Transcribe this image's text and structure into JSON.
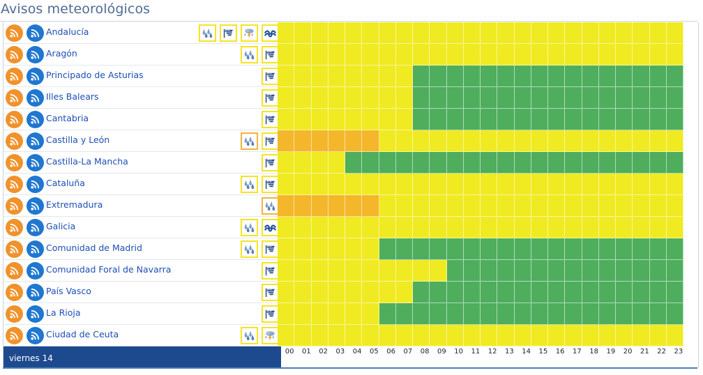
{
  "title": "Avisos meteorológicos",
  "colors": {
    "none": "#f0ea22",
    "yellow": "#f0ea22",
    "orange": "#f4b72c",
    "green": "#4fae5d",
    "day_band": "#1d4a8e"
  },
  "day_label": "viernes 14",
  "hours": [
    "00",
    "01",
    "02",
    "03",
    "04",
    "05",
    "06",
    "07",
    "08",
    "09",
    "10",
    "11",
    "12",
    "13",
    "14",
    "15",
    "16",
    "17",
    "18",
    "19",
    "20",
    "21",
    "22",
    "23"
  ],
  "regions": [
    {
      "name": "Andalucía",
      "phenomena": [
        {
          "icon": "rain-icon",
          "level": "yellow"
        },
        {
          "icon": "wind-icon",
          "level": "yellow"
        },
        {
          "icon": "storm-icon",
          "level": "yellow"
        },
        {
          "icon": "coastal-icon",
          "level": "yellow"
        }
      ],
      "hours": [
        "y",
        "y",
        "y",
        "y",
        "y",
        "y",
        "y",
        "y",
        "y",
        "y",
        "y",
        "y",
        "y",
        "y",
        "y",
        "y",
        "y",
        "y",
        "y",
        "y",
        "y",
        "y",
        "y",
        "y"
      ]
    },
    {
      "name": "Aragón",
      "phenomena": [
        {
          "icon": "rain-icon",
          "level": "yellow"
        },
        {
          "icon": "wind-icon",
          "level": "yellow"
        }
      ],
      "hours": [
        "y",
        "y",
        "y",
        "y",
        "y",
        "y",
        "y",
        "y",
        "y",
        "y",
        "y",
        "y",
        "y",
        "y",
        "y",
        "y",
        "y",
        "y",
        "y",
        "y",
        "y",
        "y",
        "y",
        "y"
      ]
    },
    {
      "name": "Principado de Asturias",
      "phenomena": [
        {
          "icon": "wind-icon",
          "level": "yellow"
        }
      ],
      "hours": [
        "y",
        "y",
        "y",
        "y",
        "y",
        "y",
        "y",
        "y",
        "g",
        "g",
        "g",
        "g",
        "g",
        "g",
        "g",
        "g",
        "g",
        "g",
        "g",
        "g",
        "g",
        "g",
        "g",
        "g"
      ]
    },
    {
      "name": "Illes Balears",
      "phenomena": [
        {
          "icon": "wind-icon",
          "level": "yellow"
        }
      ],
      "hours": [
        "y",
        "y",
        "y",
        "y",
        "y",
        "y",
        "y",
        "y",
        "g",
        "g",
        "g",
        "g",
        "g",
        "g",
        "g",
        "g",
        "g",
        "g",
        "g",
        "g",
        "g",
        "g",
        "g",
        "g"
      ]
    },
    {
      "name": "Cantabria",
      "phenomena": [
        {
          "icon": "wind-icon",
          "level": "yellow"
        }
      ],
      "hours": [
        "y",
        "y",
        "y",
        "y",
        "y",
        "y",
        "y",
        "y",
        "g",
        "g",
        "g",
        "g",
        "g",
        "g",
        "g",
        "g",
        "g",
        "g",
        "g",
        "g",
        "g",
        "g",
        "g",
        "g"
      ]
    },
    {
      "name": "Castilla y León",
      "phenomena": [
        {
          "icon": "rain-icon",
          "level": "orange"
        },
        {
          "icon": "wind-icon",
          "level": "yellow"
        }
      ],
      "hours": [
        "o",
        "o",
        "o",
        "o",
        "o",
        "o",
        "y",
        "y",
        "y",
        "y",
        "y",
        "y",
        "y",
        "y",
        "y",
        "y",
        "y",
        "y",
        "y",
        "y",
        "y",
        "y",
        "y",
        "y"
      ]
    },
    {
      "name": "Castilla-La Mancha",
      "phenomena": [
        {
          "icon": "wind-icon",
          "level": "yellow"
        }
      ],
      "hours": [
        "y",
        "y",
        "y",
        "y",
        "g",
        "g",
        "g",
        "g",
        "g",
        "g",
        "g",
        "g",
        "g",
        "g",
        "g",
        "g",
        "g",
        "g",
        "g",
        "g",
        "g",
        "g",
        "g",
        "g"
      ]
    },
    {
      "name": "Cataluña",
      "phenomena": [
        {
          "icon": "rain-icon",
          "level": "yellow"
        },
        {
          "icon": "wind-icon",
          "level": "yellow"
        }
      ],
      "hours": [
        "y",
        "y",
        "y",
        "y",
        "y",
        "y",
        "y",
        "y",
        "y",
        "y",
        "y",
        "y",
        "y",
        "y",
        "y",
        "y",
        "y",
        "y",
        "y",
        "y",
        "y",
        "y",
        "y",
        "y"
      ]
    },
    {
      "name": "Extremadura",
      "phenomena": [
        {
          "icon": "rain-icon",
          "level": "orange"
        }
      ],
      "hours": [
        "o",
        "o",
        "o",
        "o",
        "o",
        "o",
        "y",
        "y",
        "y",
        "y",
        "y",
        "y",
        "y",
        "y",
        "y",
        "y",
        "y",
        "y",
        "y",
        "y",
        "y",
        "y",
        "y",
        "y"
      ]
    },
    {
      "name": "Galicia",
      "phenomena": [
        {
          "icon": "rain-icon",
          "level": "yellow"
        },
        {
          "icon": "coastal-icon",
          "level": "yellow"
        }
      ],
      "hours": [
        "y",
        "y",
        "y",
        "y",
        "y",
        "y",
        "y",
        "y",
        "y",
        "y",
        "y",
        "y",
        "y",
        "y",
        "y",
        "y",
        "y",
        "y",
        "y",
        "y",
        "y",
        "y",
        "y",
        "y"
      ]
    },
    {
      "name": "Comunidad de Madrid",
      "phenomena": [
        {
          "icon": "rain-icon",
          "level": "yellow"
        },
        {
          "icon": "wind-icon",
          "level": "yellow"
        }
      ],
      "hours": [
        "y",
        "y",
        "y",
        "y",
        "y",
        "y",
        "g",
        "g",
        "g",
        "g",
        "g",
        "g",
        "g",
        "g",
        "g",
        "g",
        "g",
        "g",
        "g",
        "g",
        "g",
        "g",
        "g",
        "g"
      ]
    },
    {
      "name": "Comunidad Foral de Navarra",
      "phenomena": [
        {
          "icon": "wind-icon",
          "level": "yellow"
        }
      ],
      "hours": [
        "y",
        "y",
        "y",
        "y",
        "y",
        "y",
        "y",
        "y",
        "y",
        "y",
        "g",
        "g",
        "g",
        "g",
        "g",
        "g",
        "g",
        "g",
        "g",
        "g",
        "g",
        "g",
        "g",
        "g"
      ]
    },
    {
      "name": "País Vasco",
      "phenomena": [
        {
          "icon": "wind-icon",
          "level": "yellow"
        }
      ],
      "hours": [
        "y",
        "y",
        "y",
        "y",
        "y",
        "y",
        "y",
        "y",
        "g",
        "g",
        "g",
        "g",
        "g",
        "g",
        "g",
        "g",
        "g",
        "g",
        "g",
        "g",
        "g",
        "g",
        "g",
        "g"
      ]
    },
    {
      "name": "La Rioja",
      "phenomena": [
        {
          "icon": "wind-icon",
          "level": "yellow"
        }
      ],
      "hours": [
        "y",
        "y",
        "y",
        "y",
        "y",
        "y",
        "g",
        "g",
        "g",
        "g",
        "g",
        "g",
        "g",
        "g",
        "g",
        "g",
        "g",
        "g",
        "g",
        "g",
        "g",
        "g",
        "g",
        "g"
      ]
    },
    {
      "name": "Ciudad de Ceuta",
      "phenomena": [
        {
          "icon": "rain-icon",
          "level": "yellow"
        },
        {
          "icon": "storm-icon",
          "level": "yellow"
        }
      ],
      "hours": [
        "y",
        "y",
        "y",
        "y",
        "y",
        "y",
        "y",
        "y",
        "y",
        "y",
        "y",
        "y",
        "y",
        "y",
        "y",
        "y",
        "y",
        "y",
        "y",
        "y",
        "y",
        "y",
        "y",
        "y"
      ]
    }
  ]
}
